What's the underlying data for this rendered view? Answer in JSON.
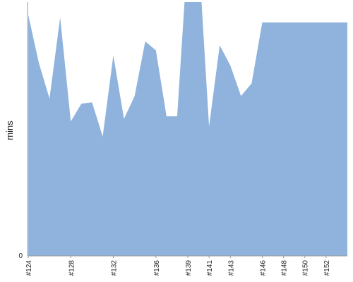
{
  "chart_data": {
    "type": "area",
    "ylabel": "mins",
    "xlabel": "",
    "x": [
      "#124",
      "#125",
      "#126",
      "#127",
      "#128",
      "#129",
      "#130",
      "#131",
      "#132",
      "#133",
      "#134",
      "#135",
      "#136",
      "#137",
      "#138",
      "#139",
      "#140",
      "#141",
      "#142",
      "#143",
      "#144",
      "#145",
      "#146",
      "#147",
      "#148",
      "#149",
      "#150",
      "#151",
      "#152",
      "#153",
      "#154"
    ],
    "values": [
      95,
      76,
      62,
      94,
      53,
      60,
      60.5,
      47,
      79,
      54,
      63,
      84.5,
      81,
      55,
      55,
      120,
      120,
      51,
      83,
      75,
      63,
      68,
      92,
      92,
      92,
      92,
      92,
      92,
      92,
      92,
      92
    ],
    "x_tick_labels": [
      "#124",
      "#128",
      "#132",
      "#136",
      "#139",
      "#141",
      "#143",
      "#146",
      "#148",
      "#150",
      "#152"
    ],
    "y_tick_labels": [
      "0"
    ],
    "ylim": [
      0,
      100
    ],
    "grid": false,
    "colors": {
      "fill": "#8fb3dc",
      "axis": "#999999"
    }
  }
}
